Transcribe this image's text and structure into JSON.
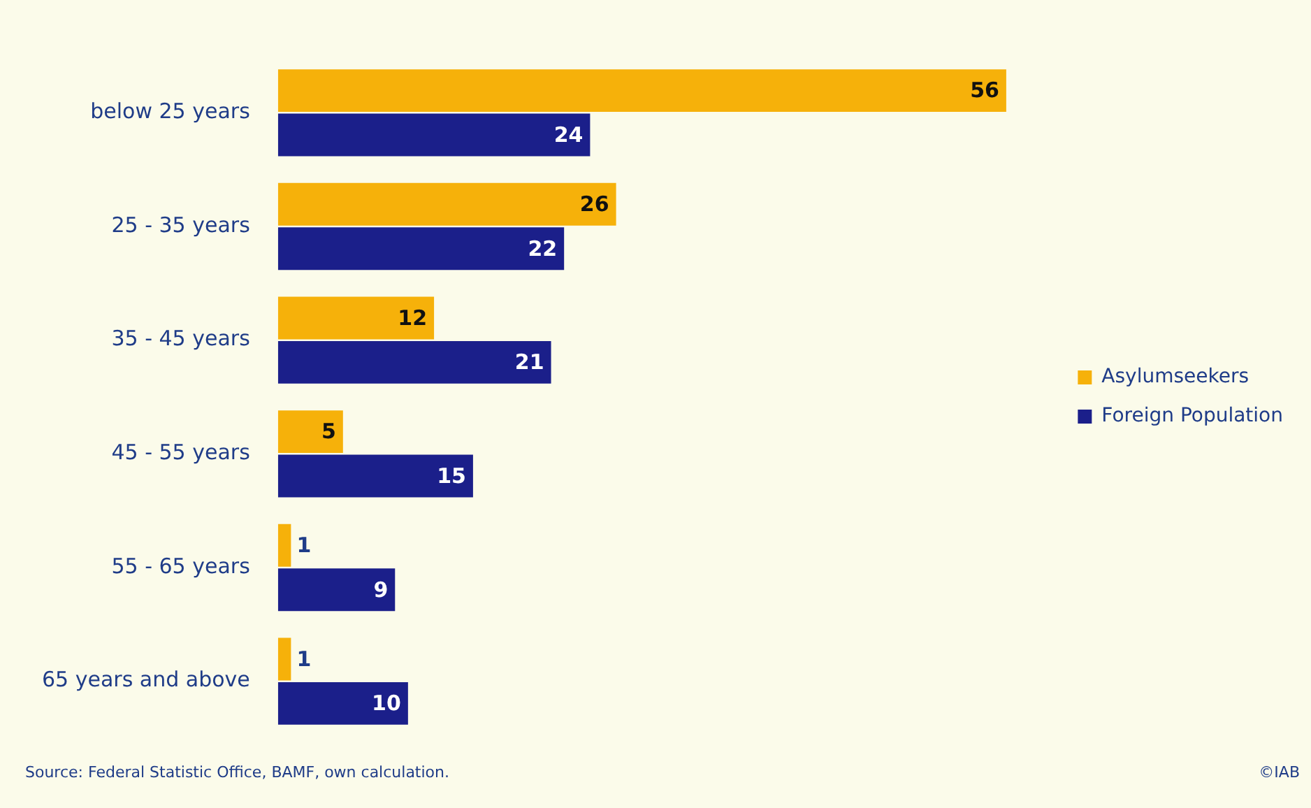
{
  "chart_data": {
    "type": "bar",
    "orientation": "horizontal",
    "categories": [
      "below 25 years",
      "25 - 35 years",
      "35 - 45 years",
      "45 - 55 years",
      "55 - 65 years",
      "65 years and above"
    ],
    "series": [
      {
        "name": "Asylumseekers",
        "color": "#f6b10a",
        "values": [
          56,
          26,
          12,
          5,
          1,
          1
        ]
      },
      {
        "name": "Foreign Population",
        "color": "#1b1f8a",
        "values": [
          24,
          22,
          21,
          15,
          9,
          10
        ]
      }
    ],
    "data_labels": true,
    "legend": "right",
    "grid": false,
    "annotations": [
      "Source: Federal Statistic Office, BAMF, own calculation.",
      "©IAB"
    ]
  }
}
